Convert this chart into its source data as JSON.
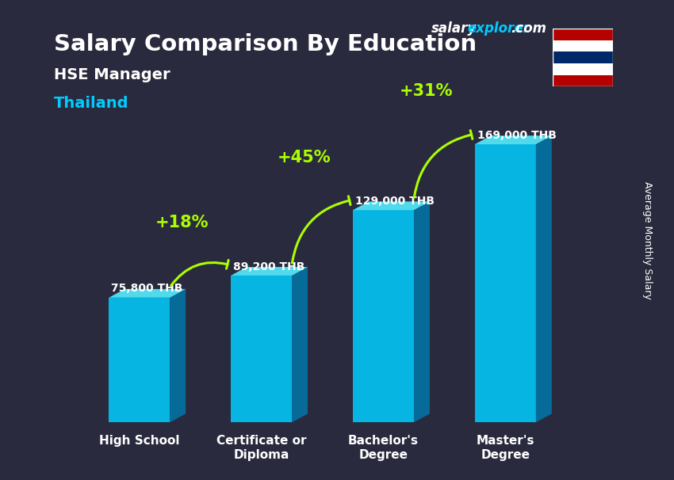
{
  "title": "Salary Comparison By Education",
  "subtitle_job": "HSE Manager",
  "subtitle_country": "Thailand",
  "watermark": "salaryexplorer.com",
  "ylabel": "Average Monthly Salary",
  "categories": [
    "High School",
    "Certificate or\nDiploma",
    "Bachelor's\nDegree",
    "Master's\nDegree"
  ],
  "values": [
    75800,
    89200,
    129000,
    169000
  ],
  "value_labels": [
    "75,800 THB",
    "89,200 THB",
    "129,000 THB",
    "169,000 THB"
  ],
  "pct_labels": [
    "+18%",
    "+45%",
    "+31%"
  ],
  "bar_color_top": "#00d4ff",
  "bar_color_bottom": "#0088cc",
  "bar_color_side": "#006699",
  "background_color": "#1a1a2e",
  "title_color": "#ffffff",
  "subtitle_job_color": "#ffffff",
  "subtitle_country_color": "#00ccff",
  "value_label_color": "#ffffff",
  "pct_label_color": "#aaff00",
  "watermark_color_salary": "#ffffff",
  "watermark_color_explorer": "#00ccff",
  "ylim": [
    0,
    210000
  ],
  "bar_width": 0.5
}
